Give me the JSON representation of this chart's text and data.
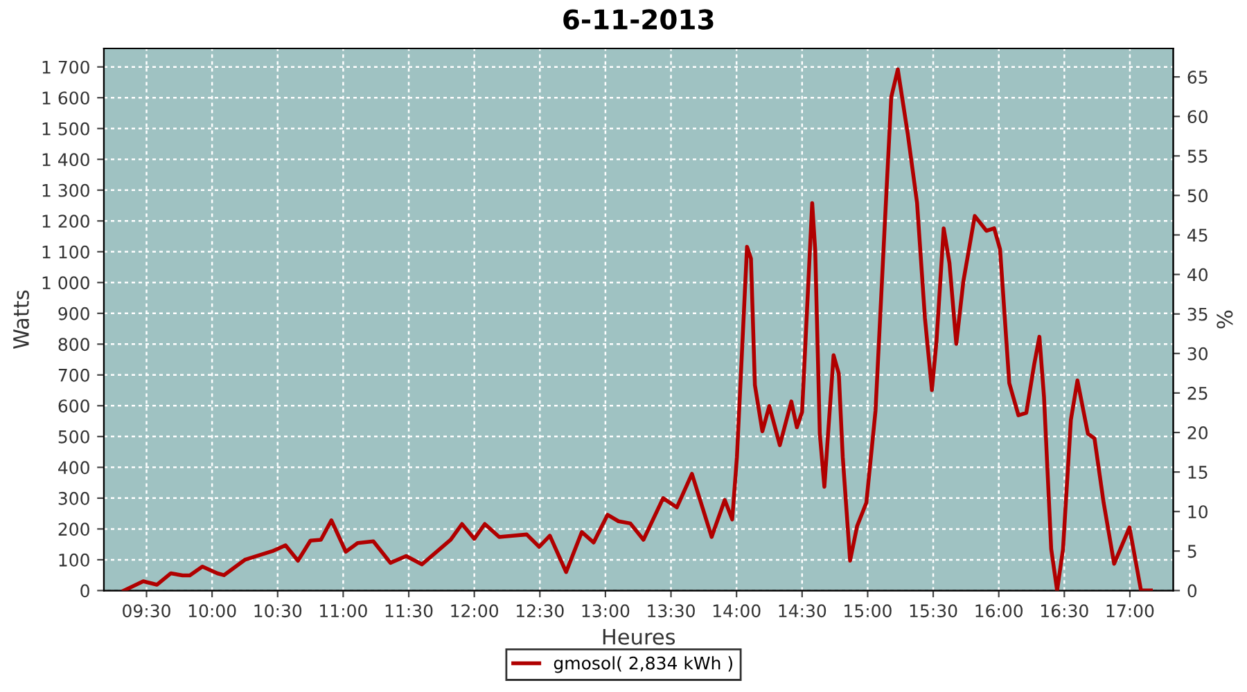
{
  "chart_data": {
    "type": "line",
    "title": "6-11-2013",
    "xlabel": "Heures",
    "ylabel": "Watts",
    "y2label": "%",
    "x": [
      9.327,
      9.475,
      9.58,
      9.686,
      9.775,
      9.83,
      9.926,
      10.04,
      10.09,
      10.25,
      10.46,
      10.56,
      10.655,
      10.75,
      10.83,
      10.91,
      11.02,
      11.11,
      11.23,
      11.36,
      11.48,
      11.6,
      11.82,
      11.906,
      12.0,
      12.08,
      12.19,
      12.29,
      12.4,
      12.495,
      12.576,
      12.7,
      12.82,
      12.91,
      13.016,
      13.1,
      13.19,
      13.29,
      13.44,
      13.545,
      13.66,
      13.81,
      13.91,
      13.967,
      14.003,
      14.08,
      14.11,
      14.14,
      14.197,
      14.25,
      14.33,
      14.418,
      14.46,
      14.5,
      14.577,
      14.6,
      14.635,
      14.67,
      14.74,
      14.78,
      14.81,
      14.866,
      14.92,
      14.99,
      15.06,
      15.13,
      15.18,
      15.23,
      15.306,
      15.377,
      15.437,
      15.49,
      15.525,
      15.58,
      15.624,
      15.676,
      15.73,
      15.817,
      15.906,
      15.965,
      16.01,
      16.08,
      16.15,
      16.21,
      16.27,
      16.31,
      16.345,
      16.4,
      16.445,
      16.49,
      16.55,
      16.6,
      16.68,
      16.73,
      16.8,
      16.88,
      16.997,
      17.085,
      17.16
    ],
    "series": [
      {
        "name": "gmosol( 2,834 kWh )",
        "color": "#b00000",
        "values": [
          0,
          30,
          19,
          56,
          49,
          49,
          78,
          56,
          50,
          100,
          128,
          147,
          97,
          162,
          165,
          228,
          126,
          154,
          160,
          90,
          112,
          85,
          165,
          216,
          168,
          216,
          174,
          178,
          182,
          142,
          178,
          60,
          190,
          156,
          246,
          225,
          218,
          165,
          300,
          270,
          379,
          174,
          294,
          231,
          434,
          1116,
          1078,
          667,
          517,
          599,
          472,
          614,
          530,
          580,
          1258,
          1105,
          509,
          337,
          764,
          704,
          434,
          97,
          210,
          285,
          584,
          1183,
          1602,
          1692,
          1482,
          1258,
          884,
          651,
          809,
          1176,
          1063,
          801,
          1004,
          1216,
          1168,
          1176,
          1108,
          674,
          569,
          577,
          734,
          824,
          629,
          135,
          0,
          135,
          554,
          682,
          509,
          494,
          285,
          87,
          205,
          0,
          0
        ]
      }
    ],
    "xlim": [
      9.175,
      17.33
    ],
    "xticks": [
      {
        "value": 9.5,
        "label": "09:30"
      },
      {
        "value": 10.0,
        "label": "10:00"
      },
      {
        "value": 10.5,
        "label": "10:30"
      },
      {
        "value": 11.0,
        "label": "11:00"
      },
      {
        "value": 11.5,
        "label": "11:30"
      },
      {
        "value": 12.0,
        "label": "12:00"
      },
      {
        "value": 12.5,
        "label": "12:30"
      },
      {
        "value": 13.0,
        "label": "13:00"
      },
      {
        "value": 13.5,
        "label": "13:30"
      },
      {
        "value": 14.0,
        "label": "14:00"
      },
      {
        "value": 14.5,
        "label": "14:30"
      },
      {
        "value": 15.0,
        "label": "15:00"
      },
      {
        "value": 15.5,
        "label": "15:30"
      },
      {
        "value": 16.0,
        "label": "16:00"
      },
      {
        "value": 16.5,
        "label": "16:30"
      },
      {
        "value": 17.0,
        "label": "17:00"
      }
    ],
    "ylim": [
      0,
      1760
    ],
    "yticks": [
      0,
      100,
      200,
      300,
      400,
      500,
      600,
      700,
      800,
      900,
      {
        "value": 1000,
        "label": "1 000"
      },
      {
        "value": 1100,
        "label": "1 100"
      },
      {
        "value": 1200,
        "label": "1 200"
      },
      {
        "value": 1300,
        "label": "1 300"
      },
      {
        "value": 1400,
        "label": "1 400"
      },
      {
        "value": 1500,
        "label": "1 500"
      },
      {
        "value": 1600,
        "label": "1 600"
      },
      {
        "value": 1700,
        "label": "1 700"
      }
    ],
    "y2lim": [
      0,
      68.6
    ],
    "y2ticks": [
      0,
      5,
      10,
      15,
      20,
      25,
      30,
      35,
      40,
      45,
      50,
      55,
      60,
      65
    ],
    "grid": true,
    "legend": "bottom",
    "line_style": "solid",
    "marker": "none"
  }
}
